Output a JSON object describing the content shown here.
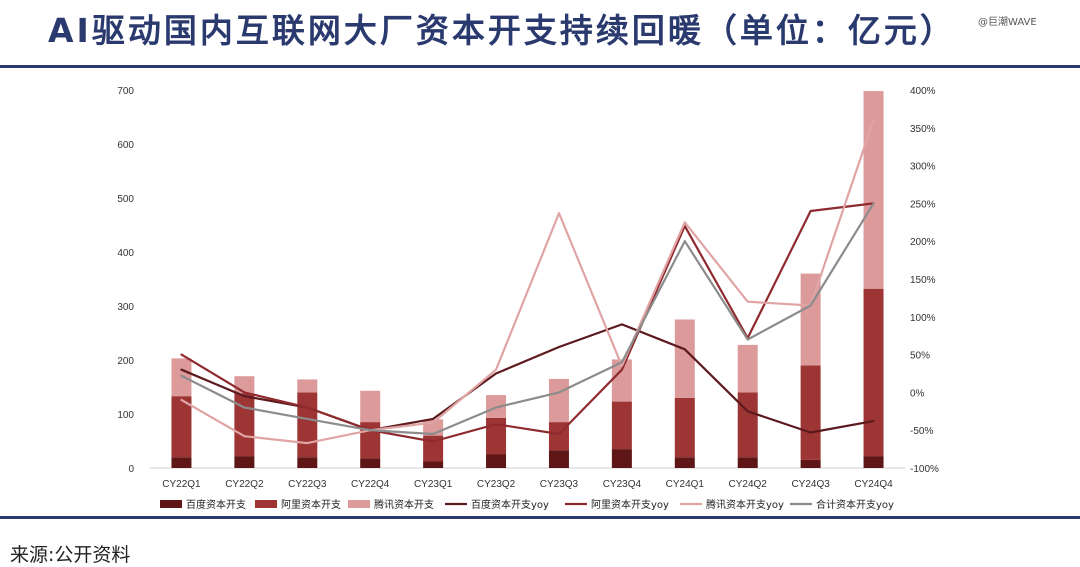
{
  "header": {
    "title": "AI驱动国内互联网大厂资本开支持续回暖（单位：亿元）",
    "watermark": "@巨潮WAVE"
  },
  "footer": {
    "source": "来源:公开资料"
  },
  "colors": {
    "baidu_bar": "#5e1616",
    "ali_bar": "#9e3535",
    "tencent_bar": "#dc9a9a",
    "baidu_yoy": "#5c1a1e",
    "ali_yoy": "#8f2a2e",
    "tencent_yoy": "#e0a4a4",
    "total_yoy": "#8c8c8c",
    "title": "#2a3a6e",
    "rule": "#2c3a6b"
  },
  "chart_data": {
    "type": "bar",
    "categories": [
      "CY22Q1",
      "CY22Q2",
      "CY22Q3",
      "CY22Q4",
      "CY23Q1",
      "CY23Q2",
      "CY23Q3",
      "CY23Q4",
      "CY24Q1",
      "CY24Q2",
      "CY24Q3",
      "CY24Q4"
    ],
    "stacked": true,
    "ylim": [
      0,
      700
    ],
    "yticks": [
      0,
      100,
      200,
      300,
      400,
      500,
      600,
      700
    ],
    "y2lim": [
      -100,
      400
    ],
    "y2ticks": [
      "-100%",
      "-50%",
      "0%",
      "50%",
      "100%",
      "150%",
      "200%",
      "250%",
      "300%",
      "350%",
      "400%"
    ],
    "y2tick_values": [
      -100,
      -50,
      0,
      50,
      100,
      150,
      200,
      250,
      300,
      350,
      400
    ],
    "series": [
      {
        "name": "百度资本开支",
        "type": "bar",
        "color": "#5e1616",
        "values": [
          20,
          22,
          20,
          18,
          12,
          25,
          33,
          35,
          20,
          20,
          15,
          22
        ]
      },
      {
        "name": "阿里资本开支",
        "type": "bar",
        "color": "#9e3535",
        "values": [
          113,
          116,
          120,
          67,
          48,
          68,
          52,
          88,
          110,
          120,
          175,
          310
        ]
      },
      {
        "name": "腾讯资本开支",
        "type": "bar",
        "color": "#dc9a9a",
        "values": [
          70,
          32,
          24,
          58,
          30,
          42,
          80,
          78,
          145,
          88,
          170,
          366
        ]
      },
      {
        "name": "百度资本开支yoy",
        "type": "line",
        "axis": "right",
        "color": "#5c1a1e",
        "values": [
          30,
          -5,
          -20,
          -50,
          -35,
          25,
          60,
          90,
          57,
          -25,
          -53,
          -38
        ]
      },
      {
        "name": "阿里资本开支yoy",
        "type": "line",
        "axis": "right",
        "color": "#8f2a2e",
        "values": [
          50,
          0,
          -20,
          -50,
          -65,
          -42,
          -55,
          30,
          220,
          72,
          240,
          250
        ]
      },
      {
        "name": "腾讯资本开支yoy",
        "type": "line",
        "axis": "right",
        "color": "#e0a4a4",
        "values": [
          -10,
          -58,
          -67,
          -50,
          -40,
          30,
          237,
          35,
          225,
          120,
          115,
          360
        ]
      },
      {
        "name": "合计资本开支yoy",
        "type": "line",
        "axis": "right",
        "color": "#8c8c8c",
        "values": [
          22,
          -20,
          -35,
          -50,
          -55,
          -20,
          0,
          40,
          200,
          70,
          115,
          250
        ]
      }
    ]
  }
}
